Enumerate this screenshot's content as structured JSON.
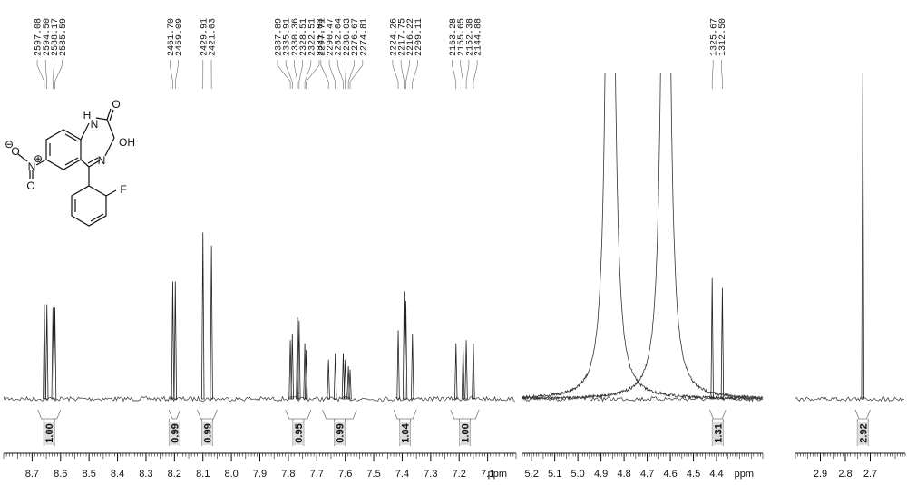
{
  "chart_data": [
    {
      "type": "spectrum",
      "axis_label": "ppm",
      "xlim": [
        8.8,
        7.0
      ],
      "xticks": [
        8.7,
        8.6,
        8.5,
        8.4,
        8.3,
        8.2,
        8.1,
        {
          "value": 8,
          "label": "8.0"
        },
        7.9,
        7.8,
        7.7,
        7.6,
        7.5,
        7.4,
        7.3,
        7.2,
        7.1
      ],
      "peaks": [
        {
          "x": 8.657,
          "height": 29,
          "label": "2597.08"
        },
        {
          "x": 8.648,
          "height": 29,
          "label": "2594.50"
        },
        {
          "x": 8.627,
          "height": 28,
          "label": "2588.17"
        },
        {
          "x": 8.62,
          "height": 28,
          "label": "2585.59"
        },
        {
          "x": 8.206,
          "height": 36,
          "label": "2461.70"
        },
        {
          "x": 8.197,
          "height": 36,
          "label": "2459.09"
        },
        {
          "x": 8.1,
          "height": 51,
          "label": "2429.91"
        },
        {
          "x": 8.07,
          "height": 47,
          "label": "2421.03"
        },
        {
          "x": 7.793,
          "height": 18,
          "label": "2337.89"
        },
        {
          "x": 7.786,
          "height": 20,
          "label": "2335.91"
        },
        {
          "x": 7.768,
          "height": 25,
          "label": "2330.36"
        },
        {
          "x": 7.762,
          "height": 24,
          "label": "2328.51"
        },
        {
          "x": 7.742,
          "height": 17,
          "label": "2322.51"
        },
        {
          "x": 7.737,
          "height": 15,
          "label": "2321.03"
        },
        {
          "x": 7.659,
          "height": 12,
          "label": "2297.71"
        },
        {
          "x": 7.635,
          "height": 14,
          "label": "2290.47"
        },
        {
          "x": 7.607,
          "height": 14,
          "label": "2282.04"
        },
        {
          "x": 7.6,
          "height": 12,
          "label": "2280.03"
        },
        {
          "x": 7.589,
          "height": 10,
          "label": "2276.67"
        },
        {
          "x": 7.583,
          "height": 9,
          "label": "2274.81"
        },
        {
          "x": 7.414,
          "height": 21,
          "label": "2224.26"
        },
        {
          "x": 7.393,
          "height": 33,
          "label": "2217.75"
        },
        {
          "x": 7.387,
          "height": 30,
          "label": "2216.22"
        },
        {
          "x": 7.364,
          "height": 20,
          "label": "2209.11"
        },
        {
          "x": 7.211,
          "height": 17,
          "label": "2163.28"
        },
        {
          "x": 7.186,
          "height": 16,
          "label": "2155.65"
        },
        {
          "x": 7.175,
          "height": 18,
          "label": "2152.38"
        },
        {
          "x": 7.15,
          "height": 17,
          "label": "2144.88"
        }
      ],
      "integrals": [
        {
          "value": 1,
          "label": "1.00",
          "from": 8.68,
          "to": 8.6
        },
        {
          "value": 0.99,
          "label": "0.99",
          "from": 8.22,
          "to": 8.18
        },
        {
          "value": 0.99,
          "label": "0.99",
          "from": 8.12,
          "to": 8.05
        },
        {
          "value": 0.95,
          "label": "0.95",
          "from": 7.81,
          "to": 7.72
        },
        {
          "value": 0.99,
          "label": "0.99",
          "from": 7.68,
          "to": 7.56
        },
        {
          "value": 1.04,
          "label": "1.04",
          "from": 7.43,
          "to": 7.35
        },
        {
          "value": 1,
          "label": "1.00",
          "from": 7.23,
          "to": 7.13
        }
      ]
    },
    {
      "type": "spectrum",
      "axis_label": "ppm",
      "xlim": [
        5.24,
        4.2
      ],
      "xticks": [
        5.2,
        5.1,
        {
          "value": 5,
          "label": "5.0"
        },
        4.9,
        4.8,
        4.7,
        4.6,
        4.5,
        4.4
      ],
      "peaks": [
        {
          "x": 4.86,
          "height": 300,
          "shape": "broad"
        },
        {
          "x": 4.62,
          "height": 300,
          "shape": "broad"
        },
        {
          "x": 4.419,
          "height": 37,
          "label": "1325.67"
        },
        {
          "x": 4.375,
          "height": 34,
          "label": "1312.50"
        }
      ],
      "integrals": [
        {
          "value": 1.31,
          "label": "1.31",
          "from": 4.43,
          "to": 4.36
        }
      ]
    },
    {
      "type": "spectrum",
      "xlim": [
        3.0,
        2.56
      ],
      "xticks": [
        2.9,
        2.8,
        2.7
      ],
      "peaks": [
        {
          "x": 2.73,
          "height": 100
        }
      ],
      "integrals": [
        {
          "value": 2.92,
          "label": "2.92",
          "from": 2.76,
          "to": 2.7
        }
      ]
    }
  ],
  "structure": {
    "labels": [
      "H",
      "N",
      "O",
      "OH",
      "N",
      "N",
      "O",
      "O",
      "F",
      "⊕",
      "⊖"
    ]
  }
}
